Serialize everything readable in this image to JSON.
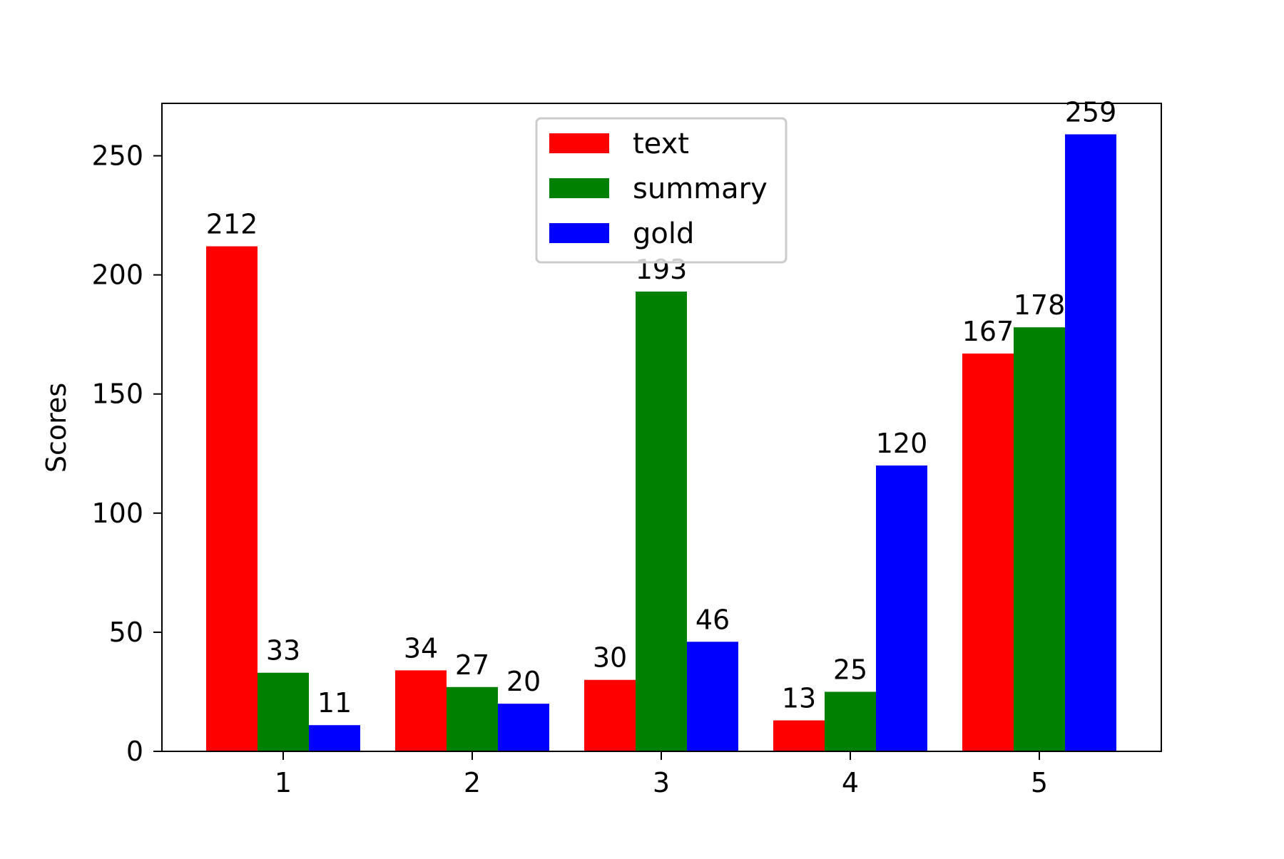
{
  "chart_data": {
    "type": "bar",
    "title": "",
    "xlabel": "",
    "ylabel": "Scores",
    "categories": [
      "1",
      "2",
      "3",
      "4",
      "5"
    ],
    "series": [
      {
        "name": "text",
        "color": "#ff0000",
        "values": [
          212,
          34,
          30,
          13,
          167
        ]
      },
      {
        "name": "summary",
        "color": "#008000",
        "values": [
          33,
          27,
          193,
          25,
          178
        ]
      },
      {
        "name": "gold",
        "color": "#0000ff",
        "values": [
          11,
          20,
          46,
          120,
          259
        ]
      }
    ],
    "ylim": [
      0,
      272
    ],
    "yticks": [
      0,
      50,
      100,
      150,
      200,
      250
    ],
    "grid": false,
    "legend_position": "top-center",
    "data_labels": true
  }
}
